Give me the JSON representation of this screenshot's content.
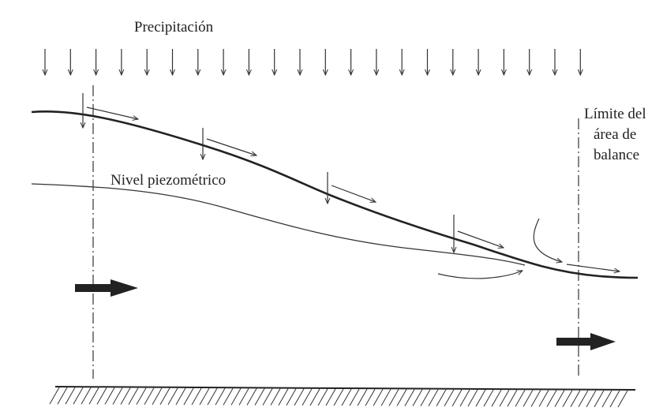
{
  "labels": {
    "precipitation": "Precipitación",
    "piezometric": "Nivel piezométrico",
    "limit": [
      "Límite del",
      "área de",
      "balance"
    ]
  }
}
